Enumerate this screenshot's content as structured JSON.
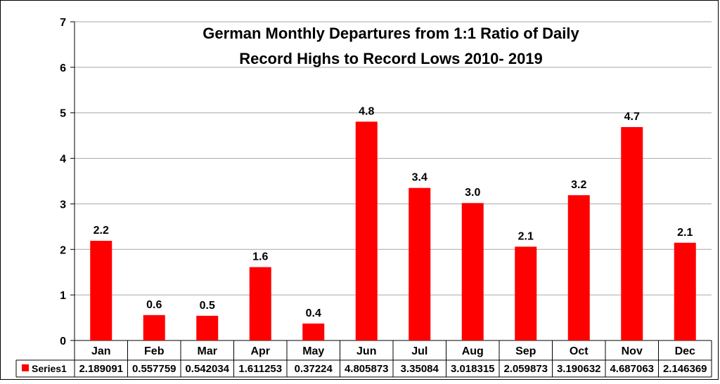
{
  "chart_data": {
    "type": "bar",
    "title_lines": [
      "German Monthly Departures from 1:1 Ratio of Daily",
      "Record Highs to Record Lows 2010- 2019"
    ],
    "categories": [
      "Jan",
      "Feb",
      "Mar",
      "Apr",
      "May",
      "Jun",
      "Jul",
      "Aug",
      "Sep",
      "Oct",
      "Nov",
      "Dec"
    ],
    "series": [
      {
        "name": "Series1",
        "values": [
          2.189091,
          0.557759,
          0.542034,
          1.611253,
          0.37224,
          4.805873,
          3.35084,
          3.018315,
          2.059873,
          3.190632,
          4.687063,
          2.146369
        ],
        "value_labels": [
          "2.189091",
          "0.557759",
          "0.542034",
          "1.611253",
          "0.37224",
          "4.805873",
          "3.35084",
          "3.018315",
          "2.059873",
          "3.190632",
          "4.687063",
          "2.146369"
        ],
        "data_labels": [
          "2.2",
          "0.6",
          "0.5",
          "1.6",
          "0.4",
          "4.8",
          "3.4",
          "3.0",
          "2.1",
          "3.2",
          "4.7",
          "2.1"
        ],
        "color": "#ff0000"
      }
    ],
    "yticks": [
      "0",
      "1",
      "2",
      "3",
      "4",
      "5",
      "6",
      "7"
    ],
    "ylim": [
      0,
      7
    ],
    "grid": true,
    "legend_placement": "data-table-left",
    "xlabel": "",
    "ylabel": ""
  }
}
